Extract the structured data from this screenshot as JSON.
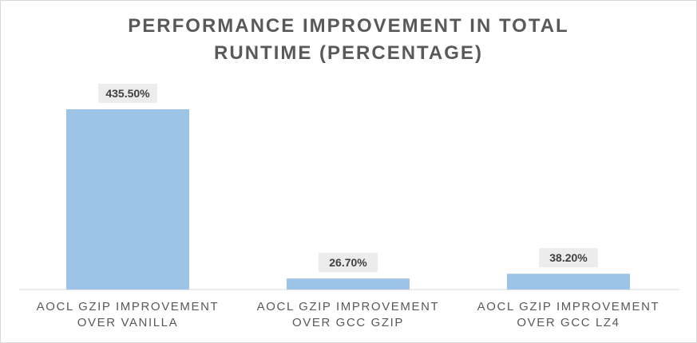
{
  "chart_data": {
    "type": "bar",
    "title": "PERFORMANCE IMPROVEMENT IN TOTAL RUNTIME (PERCENTAGE)",
    "title_lines": [
      "PERFORMANCE  IMPROVEMENT  IN TOTAL",
      "RUNTIME  (PERCENTAGE)"
    ],
    "categories": [
      "AOCL GZIP IMPROVEMENT OVER VANILLA",
      "AOCL GZIP IMPROVEMENT OVER GCC GZIP",
      "AOCL GZIP IMPROVEMENT OVER GCC LZ4"
    ],
    "category_lines": [
      [
        "AOCL GZIP IMPROVEMENT",
        "OVER VANILLA"
      ],
      [
        "AOCL GZIP IMPROVEMENT",
        "OVER GCC GZIP"
      ],
      [
        "AOCL GZIP IMPROVEMENT",
        "OVER GCC LZ4"
      ]
    ],
    "values": [
      435.5,
      26.7,
      38.2
    ],
    "data_labels": [
      "435.50%",
      "26.70%",
      "38.20%"
    ],
    "xlabel": "",
    "ylabel": "",
    "ylim": [
      0,
      450
    ],
    "grid": false,
    "legend": "none",
    "colors": {
      "bar": "#9dc3e6",
      "label_box": "#ececec",
      "axis": "#d9d9d9",
      "text": "#595959",
      "label_text": "#404040"
    }
  }
}
